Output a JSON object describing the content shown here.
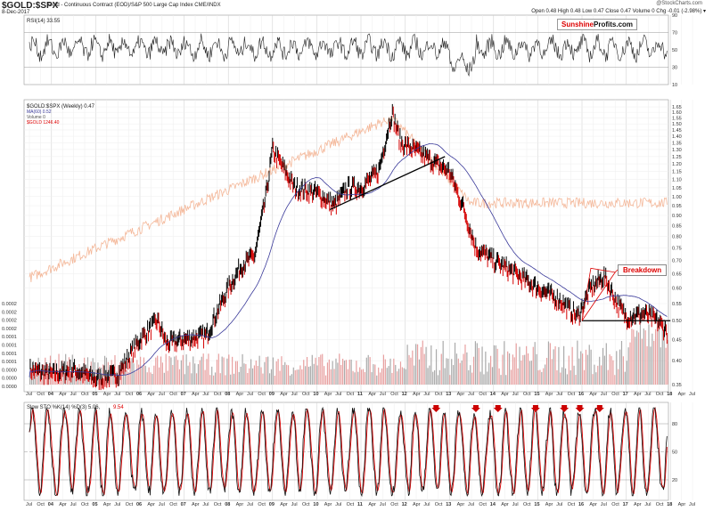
{
  "header": {
    "title": "$GOLD:$SPX",
    "subtitle": "Gold - Continuous Contract (EOD)/S&P 500 Large Cap Index  CME/INDX",
    "date": "8-Dec-2017",
    "credit": "@StockCharts.com",
    "ohlc": "Open 0.48  High 0.48  Low 0.47  Close 0.47  Volume 0  Chg -0.01 (-2.98%) ▾"
  },
  "logo": {
    "part1": "Sunshine",
    "part2": "Profits.com"
  },
  "annotation": {
    "breakdown": "Breakdown"
  },
  "colors": {
    "up": "#000000",
    "down": "#d40000",
    "ma": "#3a3a9a",
    "gold": "#f4b89a",
    "volume": "#e8a0a0",
    "volume_gray": "#aaaaaa"
  },
  "chart_data": [
    {
      "type": "line",
      "title": "RSI(14) 33.55",
      "ylim": [
        10,
        90
      ],
      "yticks": [
        "90",
        "70",
        "50",
        "30",
        "10"
      ],
      "levels": [
        70,
        30
      ]
    },
    {
      "type": "line",
      "title": "$GOLD:$SPX (Weekly) 0.47",
      "scale": "log",
      "ylim": [
        0.35,
        1.65
      ],
      "yticks": [
        "1.65",
        "1.60",
        "1.55",
        "1.50",
        "1.45",
        "1.40",
        "1.35",
        "1.30",
        "1.25",
        "1.20",
        "1.15",
        "1.10",
        "1.05",
        "1.00",
        "0.95",
        "0.90",
        "0.85",
        "0.80",
        "0.75",
        "0.70",
        "0.65",
        "0.60",
        "0.55",
        "0.50",
        "0.45",
        "0.40",
        "0.35"
      ],
      "volume_ticks": [
        "0.0002",
        "0.0002",
        "0.0002",
        "0.0002",
        "0.0001",
        "0.0001",
        "0.0001",
        "0.0001",
        "0.0000",
        "0.0000",
        "0.0000"
      ],
      "legend": [
        "$GOLD:$SPX (Weekly) 0.47",
        "MA(60) 0.52",
        "Volume 0",
        "$GOLD 1246.40"
      ],
      "x": [
        2003.5,
        2004.0,
        2004.5,
        2005.0,
        2005.5,
        2006.0,
        2006.4,
        2006.6,
        2007.0,
        2007.5,
        2008.0,
        2008.3,
        2008.6,
        2008.85,
        2009.0,
        2009.5,
        2010.0,
        2010.4,
        2010.7,
        2011.0,
        2011.4,
        2011.7,
        2011.9,
        2012.3,
        2012.7,
        2013.0,
        2013.3,
        2013.6,
        2014.0,
        2014.5,
        2015.0,
        2015.5,
        2015.9,
        2016.2,
        2016.5,
        2016.8,
        2017.0,
        2017.4,
        2017.7,
        2017.93
      ],
      "values": [
        0.38,
        0.37,
        0.38,
        0.36,
        0.37,
        0.45,
        0.5,
        0.44,
        0.45,
        0.46,
        0.6,
        0.68,
        0.72,
        1.0,
        1.3,
        1.05,
        1.02,
        0.95,
        1.05,
        1.05,
        1.15,
        1.6,
        1.35,
        1.28,
        1.2,
        1.15,
        0.95,
        0.75,
        0.7,
        0.65,
        0.6,
        0.56,
        0.51,
        0.6,
        0.64,
        0.55,
        0.51,
        0.52,
        0.5,
        0.47
      ],
      "lines": [
        {
          "from": [
            2010.3,
            0.93
          ],
          "to": [
            2012.9,
            1.25
          ]
        },
        {
          "from": [
            2016.0,
            0.5
          ],
          "to": [
            2018.0,
            0.5
          ]
        }
      ]
    },
    {
      "type": "line",
      "title": "Slow STO %K(14) %D(3) 5.06,",
      "d_value": "9.54",
      "ylim": [
        0,
        100
      ],
      "yticks": [
        "80",
        "50",
        "20"
      ],
      "x_labels": [
        "Jul",
        "Oct",
        "04",
        "Apr",
        "Jul",
        "Oct",
        "05",
        "Apr",
        "Jul",
        "Oct",
        "06",
        "Apr",
        "Jul",
        "Oct",
        "07",
        "Apr",
        "Jul",
        "Oct",
        "08",
        "Apr",
        "Jul",
        "Oct",
        "09",
        "Apr",
        "Jul",
        "Oct",
        "10",
        "Apr",
        "Jul",
        "Oct",
        "11",
        "Apr",
        "Jul",
        "Oct",
        "12",
        "Apr",
        "Jul",
        "Oct",
        "13",
        "Apr",
        "Jul",
        "Oct",
        "14",
        "Apr",
        "Jul",
        "Oct",
        "15",
        "Apr",
        "Jul",
        "Oct",
        "16",
        "Apr",
        "Jul",
        "Oct",
        "17",
        "Apr",
        "Jul",
        "Oct",
        "18",
        "Apr",
        "Jul"
      ],
      "sell_arrows": [
        2012.7,
        2013.6,
        2014.1,
        2014.95,
        2015.6,
        2015.95,
        2016.4
      ]
    }
  ]
}
